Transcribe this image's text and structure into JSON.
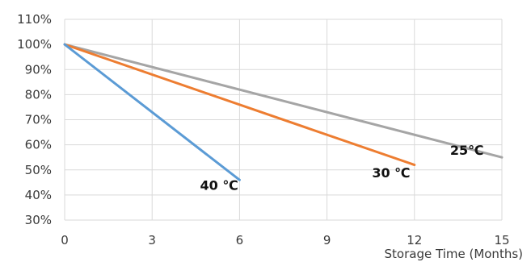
{
  "chart_data": {
    "type": "line",
    "title": "",
    "xlabel": "Storage Time (Months)",
    "ylabel": "",
    "xlim": [
      0,
      15
    ],
    "ylim": [
      30,
      110
    ],
    "x_ticks": [
      0,
      3,
      6,
      9,
      12,
      15
    ],
    "x_tick_labels": [
      "0",
      "3",
      "6",
      "9",
      "12",
      "15"
    ],
    "y_ticks": [
      30,
      40,
      50,
      60,
      70,
      80,
      90,
      100,
      110
    ],
    "y_tick_labels": [
      "30%",
      "40%",
      "50%",
      "60%",
      "70%",
      "80%",
      "90%",
      "100%",
      "110%"
    ],
    "grid": true,
    "legend": "none",
    "series": [
      {
        "label": "25℃",
        "color": "#a5a5a5",
        "x": [
          0,
          15
        ],
        "y": [
          100,
          55
        ],
        "label_at": {
          "x": 13.8,
          "y": 56
        }
      },
      {
        "label": "30 ℃",
        "color": "#ed7d31",
        "x": [
          0,
          12
        ],
        "y": [
          100,
          52
        ],
        "label_at": {
          "x": 11.2,
          "y": 47
        }
      },
      {
        "label": "40 ℃",
        "color": "#5b9bd5",
        "x": [
          0,
          6
        ],
        "y": [
          100,
          46
        ],
        "label_at": {
          "x": 5.3,
          "y": 42
        }
      }
    ]
  }
}
